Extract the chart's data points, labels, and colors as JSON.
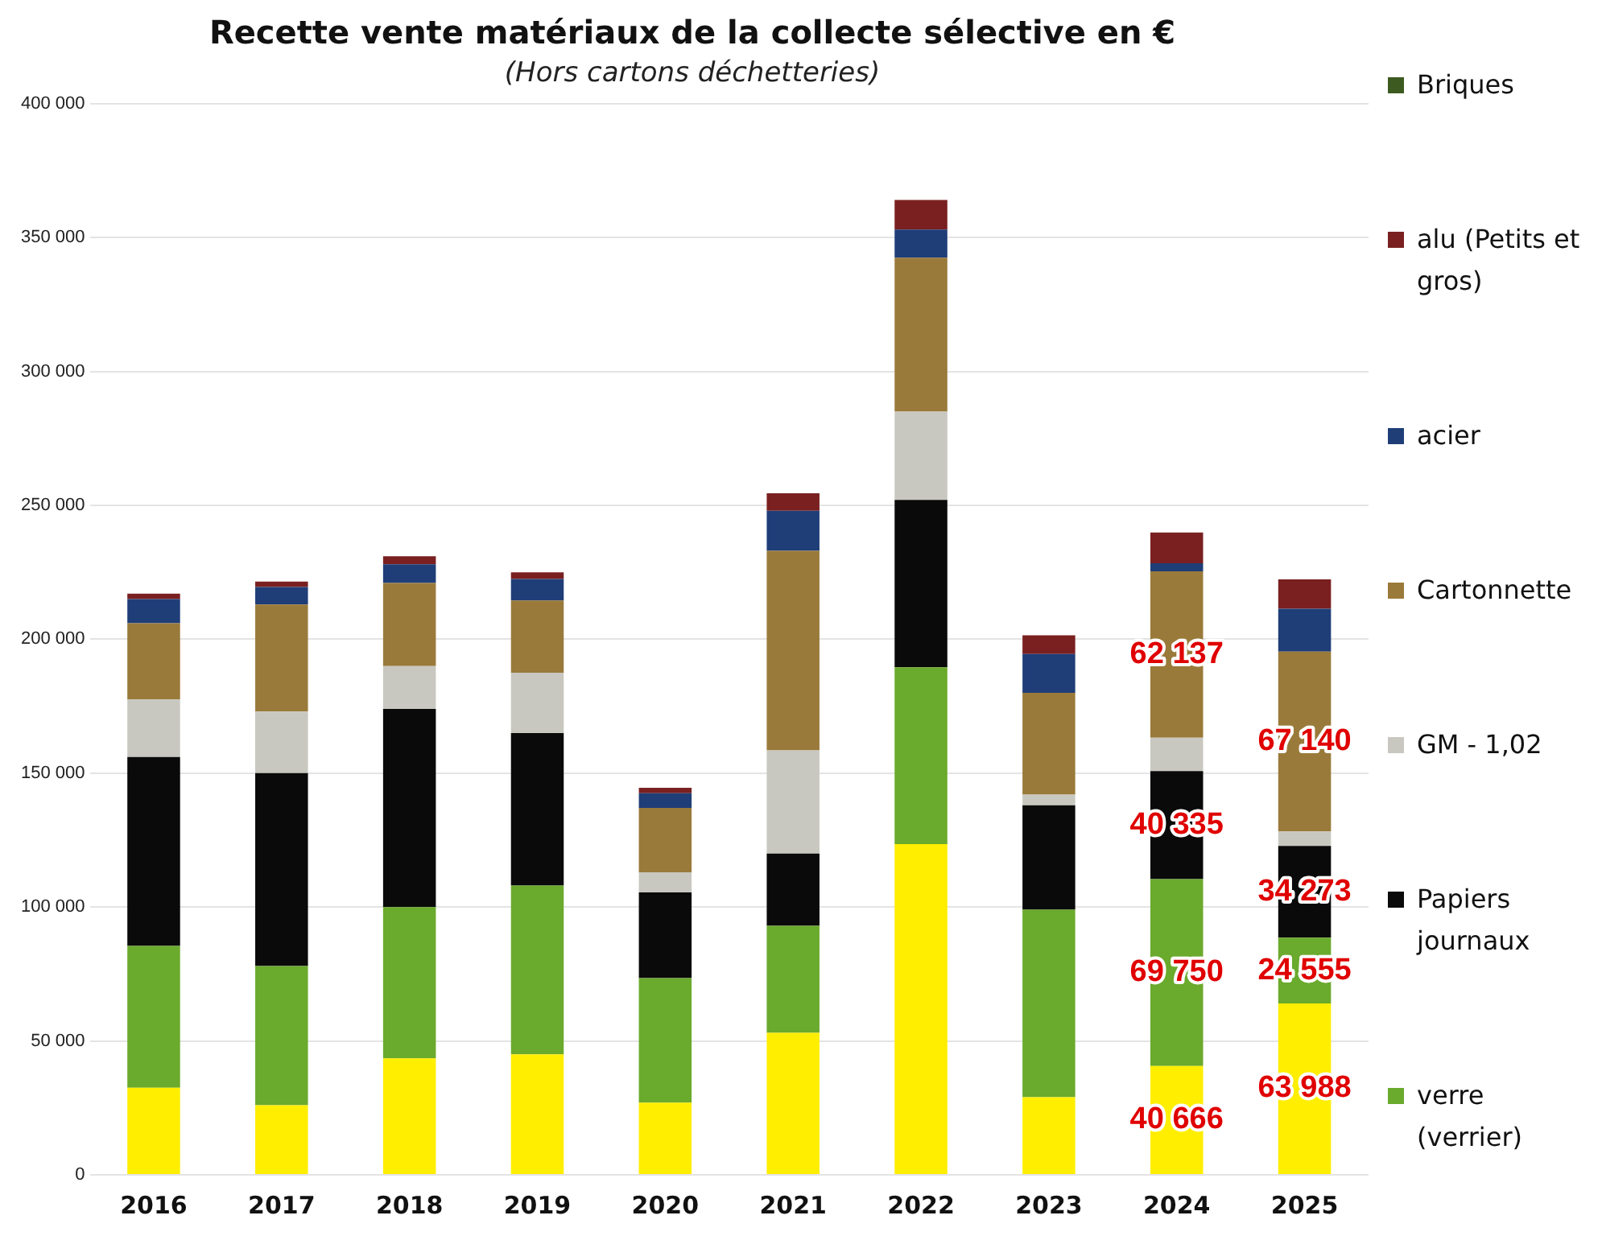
{
  "chart_data": {
    "type": "bar",
    "stacked": true,
    "title": "Recette vente matériaux de la collecte sélective en €",
    "subtitle": "(Hors cartons déchetteries)",
    "categories": [
      "2016",
      "2017",
      "2018",
      "2019",
      "2020",
      "2021",
      "2022",
      "2023",
      "2024",
      "2025"
    ],
    "series": [
      {
        "color": "#ffee00",
        "values": [
          32500,
          26000,
          43500,
          45000,
          27000,
          53000,
          123500,
          29000,
          40666,
          63988
        ],
        "value_labels": [
          null,
          null,
          null,
          null,
          null,
          null,
          null,
          null,
          "40 666",
          "63 988"
        ]
      },
      {
        "name": "verre (verrier)",
        "color": "#6aaa2c",
        "values": [
          53000,
          52000,
          56500,
          63000,
          46500,
          40000,
          66000,
          70000,
          69750,
          24555
        ],
        "value_labels": [
          null,
          null,
          null,
          null,
          null,
          null,
          null,
          null,
          "69 750",
          "24 555"
        ]
      },
      {
        "name": "Papiers journaux",
        "color": "#0a0a0a",
        "values": [
          70500,
          72000,
          74000,
          57000,
          32000,
          27000,
          62500,
          39000,
          40335,
          34273
        ],
        "value_labels": [
          null,
          null,
          null,
          null,
          null,
          null,
          null,
          null,
          "40 335",
          "34 273"
        ]
      },
      {
        "name": "GM - 1,02",
        "color": "#c8c8c0",
        "values": [
          21500,
          23000,
          16000,
          22500,
          7500,
          38500,
          33000,
          4000,
          12500,
          5400
        ]
      },
      {
        "name": "Cartonnette",
        "color": "#9a7a3a",
        "values": [
          28500,
          40000,
          31000,
          27000,
          24000,
          74500,
          57500,
          38000,
          62137,
          67140
        ],
        "value_labels": [
          null,
          null,
          null,
          null,
          null,
          null,
          null,
          null,
          "62 137",
          "67 140"
        ]
      },
      {
        "name": "acier",
        "color": "#1f3e78",
        "values": [
          9000,
          6500,
          7000,
          8000,
          5500,
          15000,
          10500,
          14500,
          3000,
          16000
        ]
      },
      {
        "name": "alu (Petits et gros)",
        "color": "#7a2020",
        "values": [
          2000,
          2000,
          3000,
          2500,
          2000,
          6500,
          11000,
          7000,
          11500,
          11000
        ]
      },
      {
        "name": "Briques",
        "color": "#3d5a20",
        "values": [
          0,
          0,
          0,
          0,
          0,
          0,
          0,
          0,
          0,
          0
        ]
      }
    ],
    "ylim": [
      0,
      400000
    ],
    "yticks": [
      {
        "value": 0,
        "label": "0"
      },
      {
        "value": 50000,
        "label": "50 000"
      },
      {
        "value": 100000,
        "label": "100 000"
      },
      {
        "value": 150000,
        "label": "150 000"
      },
      {
        "value": 200000,
        "label": "200 000"
      },
      {
        "value": 250000,
        "label": "250 000"
      },
      {
        "value": 300000,
        "label": "300 000"
      },
      {
        "value": 350000,
        "label": "350 000"
      },
      {
        "value": 400000,
        "label": "400 000"
      }
    ],
    "grid": "y",
    "legend": "right"
  }
}
